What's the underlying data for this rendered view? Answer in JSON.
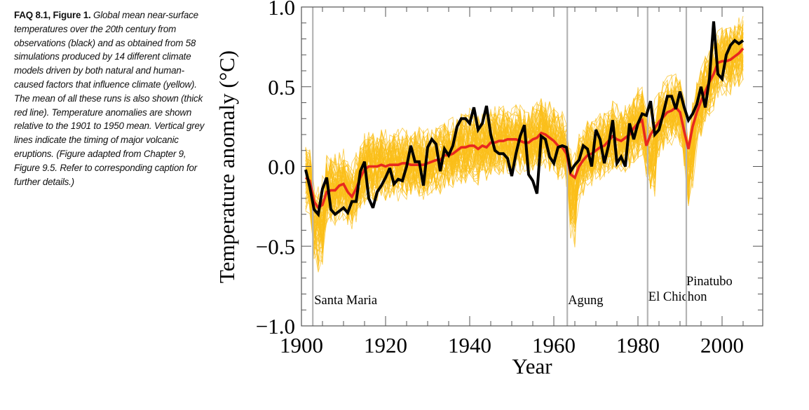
{
  "caption": {
    "lead": "FAQ 8.1, Figure 1.",
    "body": "Global mean near-surface temperatures over the 20th century from observations (black) and as obtained from 58 simulations produced by 14 different climate models driven by both natural and human-caused factors that influence climate (yellow). The mean of all these runs is also shown (thick red line). Temperature anomalies are shown relative to the 1901 to 1950 mean. Vertical grey lines indicate the timing of major volcanic eruptions. (Figure adapted from Chapter 9, Figure 9.5. Refer to corresponding caption for further details.)"
  },
  "chart_data": {
    "type": "line",
    "title": "",
    "xlabel": "Year",
    "ylabel": "Temperature anomaly (°C)",
    "xlim": [
      1900,
      2010
    ],
    "ylim": [
      -1.0,
      1.0
    ],
    "x_ticks": [
      1900,
      1920,
      1940,
      1960,
      1980,
      2000
    ],
    "x_tick_labels": [
      "1900",
      "1920",
      "1940",
      "1960",
      "1980",
      "2000"
    ],
    "y_ticks": [
      -1.0,
      -0.5,
      0.0,
      0.5,
      1.0
    ],
    "y_tick_labels": [
      "−1.0",
      "−0.5",
      "0.0",
      "0.5",
      "1.0"
    ],
    "grid": false,
    "colors": {
      "observations": "#000000",
      "model_mean": "#e8281e",
      "model_runs": "#fbbf1a",
      "volcano_lines": "#b4b4b4",
      "axes": "#555555"
    },
    "series": [
      {
        "name": "Observations",
        "color": "#000000",
        "x": [
          1901,
          1902,
          1903,
          1904,
          1905,
          1906,
          1907,
          1908,
          1909,
          1910,
          1911,
          1912,
          1913,
          1914,
          1915,
          1916,
          1917,
          1918,
          1919,
          1920,
          1921,
          1922,
          1923,
          1924,
          1925,
          1926,
          1927,
          1928,
          1929,
          1930,
          1931,
          1932,
          1933,
          1934,
          1935,
          1936,
          1937,
          1938,
          1939,
          1940,
          1941,
          1942,
          1943,
          1944,
          1945,
          1946,
          1947,
          1948,
          1949,
          1950,
          1951,
          1952,
          1953,
          1954,
          1955,
          1956,
          1957,
          1958,
          1959,
          1960,
          1961,
          1962,
          1963,
          1964,
          1965,
          1966,
          1967,
          1968,
          1969,
          1970,
          1971,
          1972,
          1973,
          1974,
          1975,
          1976,
          1977,
          1978,
          1979,
          1980,
          1981,
          1982,
          1983,
          1984,
          1985,
          1986,
          1987,
          1988,
          1989,
          1990,
          1991,
          1992,
          1993,
          1994,
          1995,
          1996,
          1997,
          1998,
          1999,
          2000,
          2001,
          2002,
          2003,
          2004,
          2005
        ],
        "values": [
          -0.02,
          -0.13,
          -0.27,
          -0.3,
          -0.14,
          -0.07,
          -0.27,
          -0.3,
          -0.28,
          -0.26,
          -0.29,
          -0.22,
          -0.22,
          -0.03,
          0.03,
          -0.2,
          -0.26,
          -0.16,
          -0.12,
          -0.07,
          -0.01,
          -0.11,
          -0.08,
          -0.09,
          0.0,
          0.13,
          0.03,
          0.03,
          -0.12,
          0.12,
          0.17,
          0.14,
          -0.03,
          0.11,
          0.07,
          0.13,
          0.25,
          0.3,
          0.3,
          0.27,
          0.37,
          0.23,
          0.27,
          0.38,
          0.2,
          0.1,
          0.08,
          0.08,
          0.05,
          -0.06,
          0.08,
          0.19,
          0.26,
          -0.05,
          -0.09,
          -0.17,
          0.19,
          0.17,
          0.06,
          0.02,
          0.12,
          0.13,
          0.12,
          -0.03,
          0.01,
          0.04,
          0.13,
          0.11,
          0.0,
          0.23,
          0.17,
          0.02,
          0.13,
          0.29,
          0.02,
          0.06,
          0.0,
          0.27,
          0.17,
          0.27,
          0.33,
          0.32,
          0.41,
          0.2,
          0.23,
          0.33,
          0.44,
          0.44,
          0.36,
          0.47,
          0.37,
          0.29,
          0.33,
          0.39,
          0.5,
          0.37,
          0.55,
          0.91,
          0.58,
          0.55,
          0.7,
          0.76,
          0.79,
          0.77,
          0.79
        ]
      },
      {
        "name": "Model mean",
        "color": "#e8281e",
        "x": [
          1901,
          1902,
          1903,
          1904,
          1905,
          1906,
          1907,
          1908,
          1909,
          1910,
          1911,
          1912,
          1913,
          1914,
          1915,
          1916,
          1917,
          1918,
          1919,
          1920,
          1921,
          1922,
          1923,
          1924,
          1925,
          1926,
          1927,
          1928,
          1929,
          1930,
          1931,
          1932,
          1933,
          1934,
          1935,
          1936,
          1937,
          1938,
          1939,
          1940,
          1941,
          1942,
          1943,
          1944,
          1945,
          1946,
          1947,
          1948,
          1949,
          1950,
          1951,
          1952,
          1953,
          1954,
          1955,
          1956,
          1957,
          1958,
          1959,
          1960,
          1961,
          1962,
          1963,
          1964,
          1965,
          1966,
          1967,
          1968,
          1969,
          1970,
          1971,
          1972,
          1973,
          1974,
          1975,
          1976,
          1977,
          1978,
          1979,
          1980,
          1981,
          1982,
          1983,
          1984,
          1985,
          1986,
          1987,
          1988,
          1989,
          1990,
          1991,
          1992,
          1993,
          1994,
          1995,
          1996,
          1997,
          1998,
          1999,
          2000,
          2001,
          2002,
          2003,
          2004,
          2005
        ],
        "values": [
          -0.07,
          -0.09,
          -0.22,
          -0.26,
          -0.24,
          -0.16,
          -0.15,
          -0.15,
          -0.12,
          -0.11,
          -0.16,
          -0.19,
          -0.14,
          -0.07,
          -0.02,
          0.0,
          0.0,
          0.0,
          0.01,
          0.0,
          0.01,
          0.01,
          0.01,
          0.02,
          0.02,
          0.01,
          0.01,
          0.01,
          0.01,
          0.02,
          0.03,
          0.04,
          0.04,
          0.07,
          0.07,
          0.08,
          0.1,
          0.12,
          0.12,
          0.13,
          0.13,
          0.11,
          0.13,
          0.12,
          0.15,
          0.15,
          0.16,
          0.16,
          0.17,
          0.17,
          0.17,
          0.16,
          0.15,
          0.15,
          0.17,
          0.18,
          0.21,
          0.2,
          0.18,
          0.16,
          0.13,
          0.12,
          0.08,
          -0.05,
          -0.07,
          0.0,
          0.04,
          0.07,
          0.08,
          0.1,
          0.12,
          0.13,
          0.16,
          0.19,
          0.17,
          0.16,
          0.18,
          0.2,
          0.24,
          0.27,
          0.29,
          0.13,
          0.2,
          0.24,
          0.28,
          0.31,
          0.34,
          0.35,
          0.37,
          0.34,
          0.22,
          0.11,
          0.25,
          0.34,
          0.41,
          0.47,
          0.53,
          0.58,
          0.65,
          0.66,
          0.66,
          0.67,
          0.69,
          0.71,
          0.74
        ]
      }
    ],
    "model_runs": {
      "name": "Model simulations (58 runs from 14 models)",
      "count": 58,
      "color": "#fbbf1a",
      "spread_note": "individual runs scatter roughly ±0.2–0.3 °C around the model mean"
    },
    "annotations": [
      {
        "label": "Santa Maria",
        "year": 1902.7
      },
      {
        "label": "Agung",
        "year": 1963.2
      },
      {
        "label": "El Chichon",
        "year": 1982.3
      },
      {
        "label": "Pinatubo",
        "year": 1991.5
      }
    ]
  }
}
